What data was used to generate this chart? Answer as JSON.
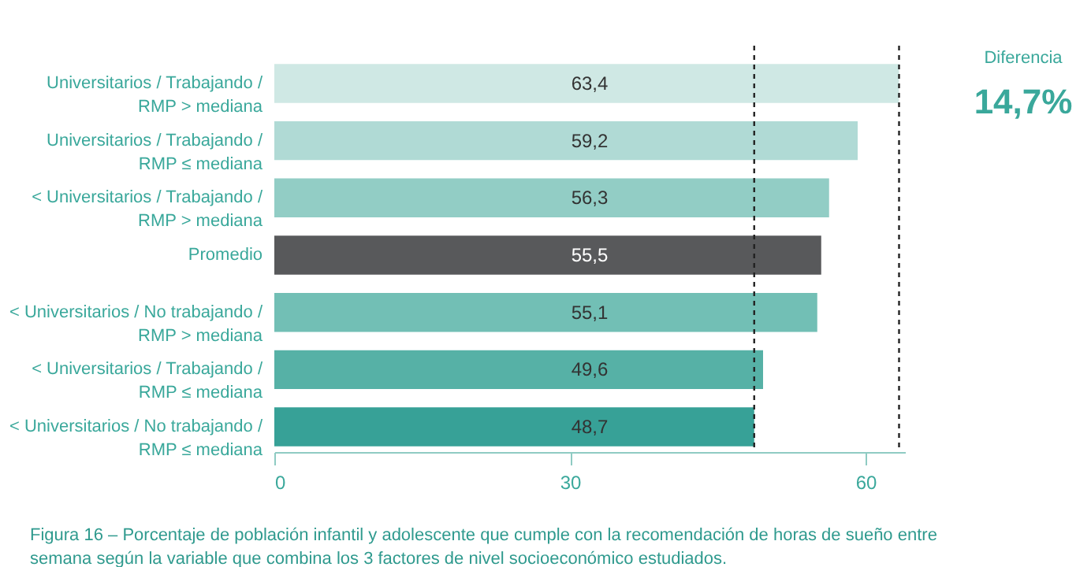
{
  "chart_data": {
    "type": "bar",
    "orientation": "horizontal",
    "categories": [
      "Universitarios / Trabajando / RMP > mediana",
      "Universitarios / Trabajando / RMP ≤ mediana",
      "< Universitarios / Trabajando / RMP > mediana",
      "Promedio",
      "< Universitarios / No trabajando / RMP > mediana",
      "< Universitarios / Trabajando / RMP ≤ mediana",
      "< Universitarios / No trabajando / RMP ≤ mediana"
    ],
    "values": [
      63.4,
      59.2,
      56.3,
      55.5,
      55.1,
      49.6,
      48.7
    ],
    "colors": [
      "#cfe8e4",
      "#b0dad5",
      "#92cdc5",
      "#58595b",
      "#72bfb5",
      "#56b1a6",
      "#37a197"
    ],
    "value_labels": [
      "63,4",
      "59,2",
      "56,3",
      "55,5",
      "55,1",
      "49,6",
      "48,7"
    ],
    "xlim": [
      0,
      64
    ],
    "xticks": [
      0,
      30,
      60
    ],
    "grid": false,
    "ref_lines": [
      {
        "axis": "x",
        "value": 48.7,
        "color": "#222222",
        "line_style": "dashed"
      },
      {
        "axis": "x",
        "value": 63.4,
        "color": "#222222",
        "line_style": "dashed"
      }
    ],
    "annotations": [
      "Diferencia",
      "14,7%",
      "Figura 16 – Porcentaje de población infantil y adolescente que cumple con la recomendación de horas de sueño entre semana según la variable que combina los 3 factores de nivel socioeconómico estudiados."
    ]
  }
}
